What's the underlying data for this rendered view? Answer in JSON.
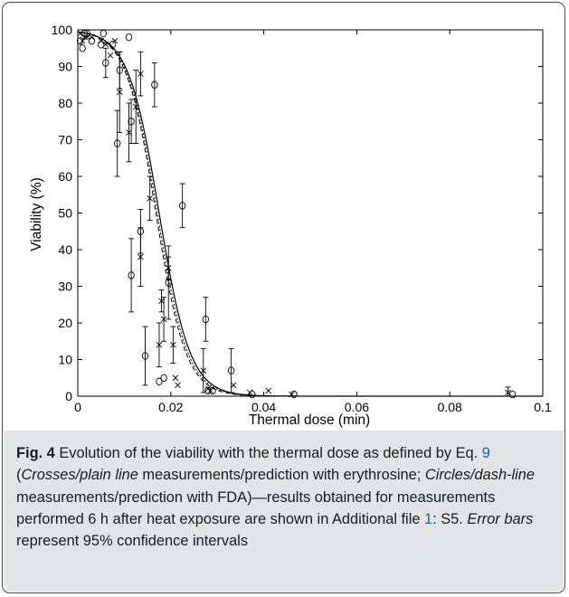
{
  "chart_data": {
    "type": "scatter",
    "xlabel": "Thermal dose (min)",
    "ylabel": "Viability (%)",
    "xlim": [
      0,
      0.1
    ],
    "ylim": [
      0,
      100
    ],
    "x_ticks": [
      "0",
      "0.02",
      "0.04",
      "0.06",
      "0.08",
      "0.1"
    ],
    "y_ticks": [
      "0",
      "10",
      "20",
      "30",
      "40",
      "50",
      "60",
      "70",
      "80",
      "90",
      "100"
    ],
    "grid": false,
    "series": [
      {
        "marker": "cross",
        "points": [
          {
            "x": 0.0005,
            "y": 99
          },
          {
            "x": 0.001,
            "y": 97
          },
          {
            "x": 0.0015,
            "y": 98
          },
          {
            "x": 0.002,
            "y": 98
          },
          {
            "x": 0.003,
            "y": 98
          },
          {
            "x": 0.005,
            "y": 97
          },
          {
            "x": 0.006,
            "y": 96
          },
          {
            "x": 0.007,
            "y": 93
          },
          {
            "x": 0.008,
            "y": 97
          },
          {
            "x": 0.009,
            "y": 83,
            "err": 11
          },
          {
            "x": 0.011,
            "y": 72,
            "err": 8
          },
          {
            "x": 0.0125,
            "y": 79,
            "err": 10
          },
          {
            "x": 0.0135,
            "y": 88,
            "err": 6
          },
          {
            "x": 0.0135,
            "y": 38,
            "err": 8
          },
          {
            "x": 0.0155,
            "y": 54,
            "err": 6
          },
          {
            "x": 0.0175,
            "y": 14,
            "err": 6
          },
          {
            "x": 0.018,
            "y": 26,
            "err": 3
          },
          {
            "x": 0.0185,
            "y": 21,
            "err": 6
          },
          {
            "x": 0.0195,
            "y": 35,
            "err": 3
          },
          {
            "x": 0.0205,
            "y": 14,
            "err": 5
          },
          {
            "x": 0.021,
            "y": 5
          },
          {
            "x": 0.0215,
            "y": 3
          },
          {
            "x": 0.027,
            "y": 7,
            "err": 6
          },
          {
            "x": 0.028,
            "y": 2
          },
          {
            "x": 0.0285,
            "y": 1.5
          },
          {
            "x": 0.0335,
            "y": 3
          },
          {
            "x": 0.037,
            "y": 1
          },
          {
            "x": 0.041,
            "y": 1.5
          },
          {
            "x": 0.046,
            "y": 0.5
          },
          {
            "x": 0.0925,
            "y": 1,
            "err": 1.5
          }
        ]
      },
      {
        "marker": "circle",
        "points": [
          {
            "x": 0.0005,
            "y": 97
          },
          {
            "x": 0.001,
            "y": 95
          },
          {
            "x": 0.0015,
            "y": 99
          },
          {
            "x": 0.002,
            "y": 99
          },
          {
            "x": 0.003,
            "y": 97
          },
          {
            "x": 0.005,
            "y": 96
          },
          {
            "x": 0.0055,
            "y": 99
          },
          {
            "x": 0.006,
            "y": 91,
            "err": 4
          },
          {
            "x": 0.0075,
            "y": 96
          },
          {
            "x": 0.009,
            "y": 89,
            "err": 5
          },
          {
            "x": 0.0085,
            "y": 69,
            "err": 9
          },
          {
            "x": 0.0115,
            "y": 75,
            "err": 6
          },
          {
            "x": 0.011,
            "y": 98
          },
          {
            "x": 0.0115,
            "y": 33,
            "err": 10
          },
          {
            "x": 0.0135,
            "y": 45,
            "err": 6
          },
          {
            "x": 0.0145,
            "y": 11,
            "err": 8
          },
          {
            "x": 0.0165,
            "y": 85,
            "err": 6
          },
          {
            "x": 0.0175,
            "y": 4
          },
          {
            "x": 0.0185,
            "y": 5
          },
          {
            "x": 0.0195,
            "y": 31,
            "err": 10
          },
          {
            "x": 0.0225,
            "y": 52,
            "err": 6
          },
          {
            "x": 0.0275,
            "y": 21,
            "err": 6
          },
          {
            "x": 0.028,
            "y": 1.5
          },
          {
            "x": 0.029,
            "y": 1.5
          },
          {
            "x": 0.033,
            "y": 7,
            "err": 6
          },
          {
            "x": 0.0375,
            "y": 0.5
          },
          {
            "x": 0.0465,
            "y": 0.5
          },
          {
            "x": 0.0935,
            "y": 0.5
          }
        ]
      }
    ],
    "curves": [
      {
        "style": "solid",
        "x50": 0.0175,
        "steepness": 300
      },
      {
        "style": "dashed",
        "x50": 0.0168,
        "steepness": 310
      },
      {
        "style": "dotted",
        "x50": 0.0171,
        "steepness": 305
      }
    ]
  },
  "caption": {
    "label": "Fig. 4",
    "t1": "  Evolution of the viability with the thermal dose as defined by Eq. ",
    "eq_ref": "9",
    "t2": " (",
    "i1": "Crosses/plain line",
    "t3": " measurements/prediction with erythrosine; ",
    "i2": "Circles/dash-line",
    "t4": " measurements/prediction with FDA)—results obtained for measurements performed 6 h after heat exposure are shown in Additional file ",
    "file_ref": "1",
    "t5": ": S5. ",
    "i3": "Error bars",
    "t6": " represent 95% confidence intervals"
  }
}
